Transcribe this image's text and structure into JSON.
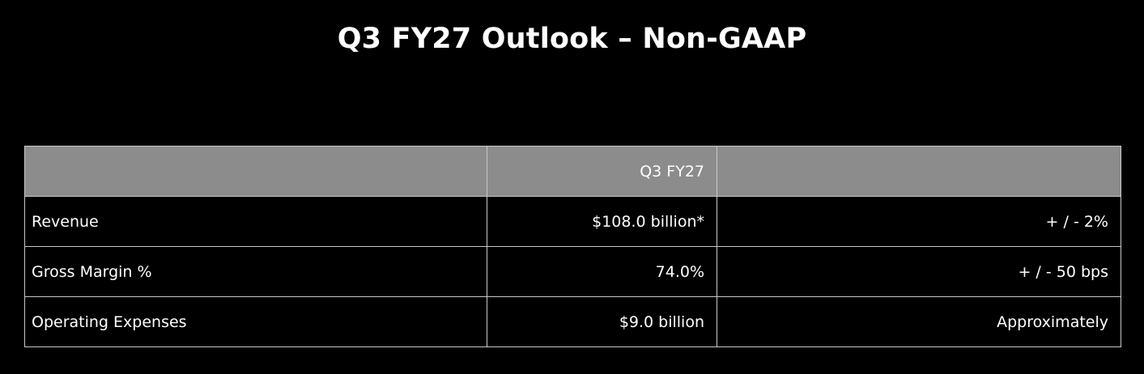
{
  "title": "Q3 FY27 Outlook – Non-GAAP",
  "table": {
    "headers": [
      "",
      "Q3 FY27",
      ""
    ],
    "rows": [
      {
        "label": "Revenue",
        "value": "$108.0 billion*",
        "range": "+ / - 2%"
      },
      {
        "label": "Gross Margin %",
        "value": "74.0%",
        "range": "+ / - 50 bps"
      },
      {
        "label": "Operating Expenses",
        "value": "$9.0 billion",
        "range": "Approximately"
      }
    ]
  },
  "colors": {
    "background": "#000000",
    "header_fill": "#8c8c8c",
    "border": "#c8c8c8",
    "text": "#ffffff"
  }
}
